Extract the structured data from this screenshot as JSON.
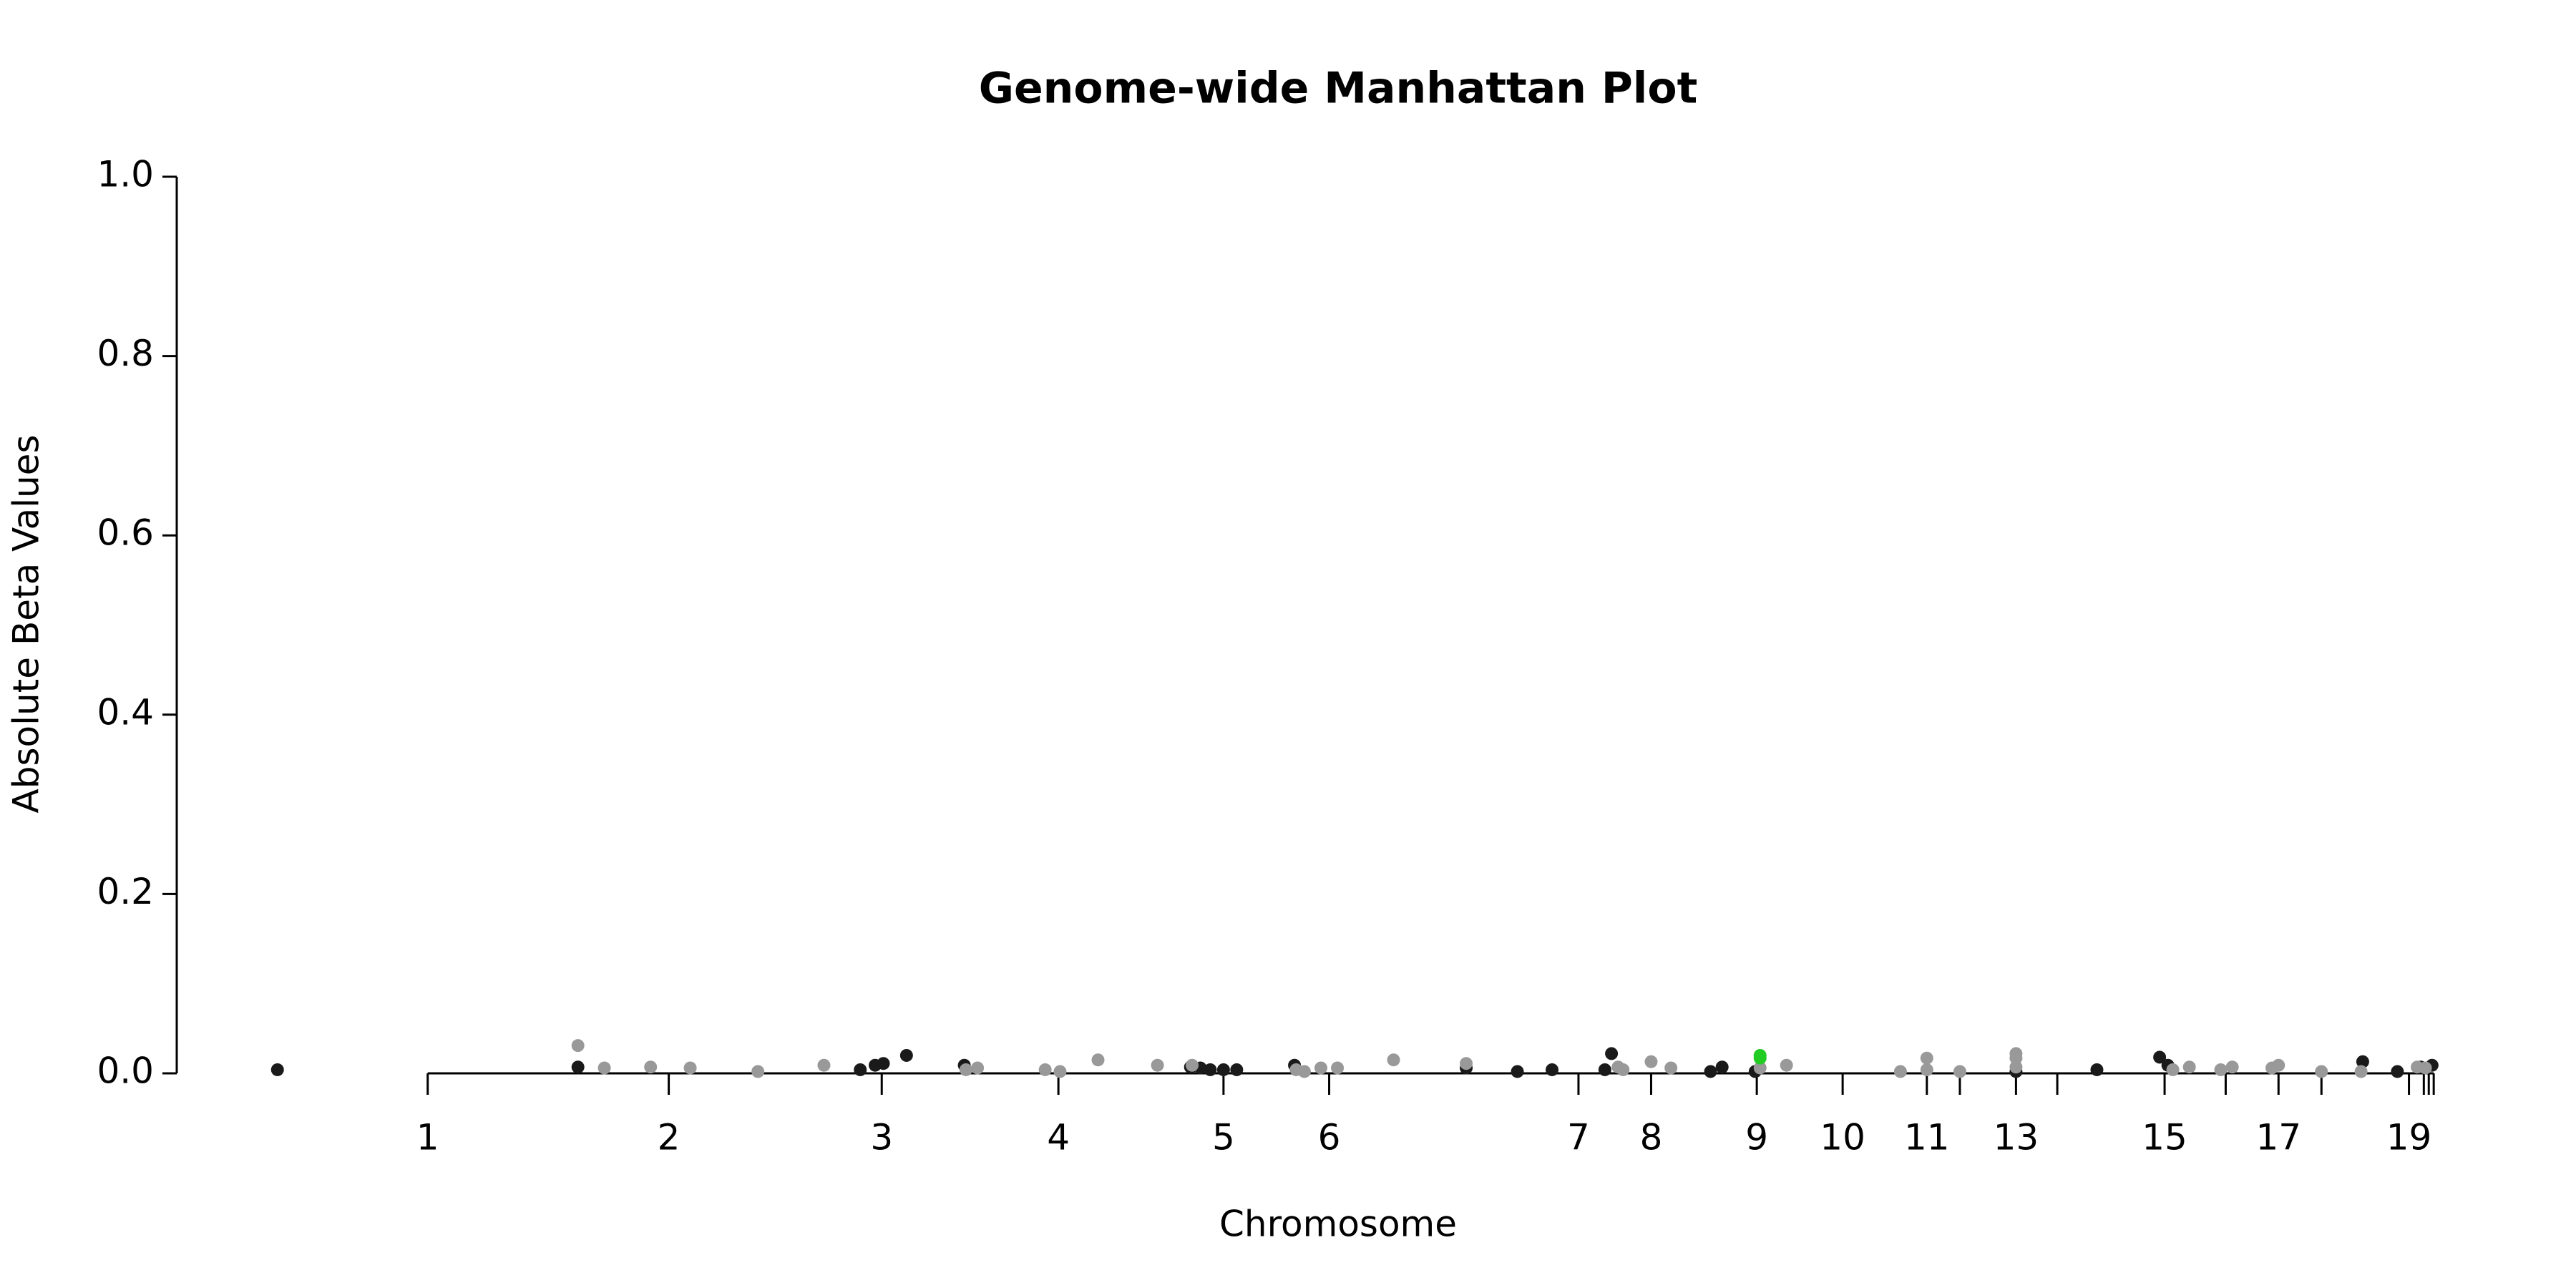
{
  "chart_data": {
    "type": "scatter",
    "title": "Genome-wide Manhattan Plot",
    "x_label": "Chromosome",
    "y_label": "Absolute Beta Values",
    "xlim": [
      107,
      1480
    ],
    "ylim": [
      0,
      1.0
    ],
    "xticks": [
      {
        "value": 259,
        "label": "1"
      },
      {
        "value": 405,
        "label": "2"
      },
      {
        "value": 534,
        "label": "3"
      },
      {
        "value": 641,
        "label": "4"
      },
      {
        "value": 741,
        "label": "5"
      },
      {
        "value": 805,
        "label": "6"
      },
      {
        "value": 956,
        "label": "7"
      },
      {
        "value": 1000,
        "label": "8"
      },
      {
        "value": 1064,
        "label": "9"
      },
      {
        "value": 1116,
        "label": "10"
      },
      {
        "value": 1167,
        "label": "11"
      },
      {
        "value": 1187,
        "label": null
      },
      {
        "value": 1221,
        "label": "13"
      },
      {
        "value": 1246,
        "label": null
      },
      {
        "value": 1311,
        "label": "15"
      },
      {
        "value": 1348,
        "label": null
      },
      {
        "value": 1380,
        "label": "17"
      },
      {
        "value": 1406,
        "label": null
      },
      {
        "value": 1459,
        "label": "19"
      },
      {
        "value": 1468,
        "label": null
      },
      {
        "value": 1471,
        "label": null
      },
      {
        "value": 1474,
        "label": null
      }
    ],
    "yticks": [
      {
        "value": 0,
        "label": "0.0"
      },
      {
        "value": 0.2,
        "label": "0.2"
      },
      {
        "value": 0.4,
        "label": "0.4"
      },
      {
        "value": 0.6,
        "label": "0.6"
      },
      {
        "value": 0.8,
        "label": "0.8"
      },
      {
        "value": 1.0,
        "label": "1.0"
      }
    ],
    "series": [
      {
        "color": "#1a1a1a",
        "x": [
          168,
          350,
          521,
          530,
          535,
          549,
          584,
          721,
          727,
          733,
          741,
          749,
          784,
          888,
          919,
          940,
          972,
          976,
          1036,
          1043,
          1063,
          1221,
          1270,
          1308,
          1313,
          1431,
          1452,
          1466,
          1473
        ],
        "values": [
          0.004,
          0.007,
          0.004,
          0.009,
          0.011,
          0.02,
          0.009,
          0.007,
          0.006,
          0.004,
          0.004,
          0.004,
          0.009,
          0.006,
          0.002,
          0.004,
          0.004,
          0.022,
          0.002,
          0.007,
          0.002,
          0.002,
          0.004,
          0.018,
          0.009,
          0.013,
          0.002,
          0.007,
          0.009
        ]
      },
      {
        "color": "#999999",
        "x": [
          350,
          366,
          394,
          418,
          459,
          499,
          585,
          592,
          633,
          642,
          665,
          701,
          722,
          785,
          790,
          800,
          810,
          844,
          888,
          980,
          983,
          1000,
          1012,
          1066,
          1082,
          1151,
          1167,
          1167,
          1187,
          1221,
          1221,
          1221,
          1316,
          1326,
          1345,
          1352,
          1376,
          1380,
          1406,
          1430,
          1464,
          1469
        ],
        "values": [
          0.031,
          0.006,
          0.007,
          0.006,
          0.002,
          0.009,
          0.004,
          0.006,
          0.004,
          0.002,
          0.015,
          0.009,
          0.009,
          0.004,
          0.002,
          0.006,
          0.006,
          0.015,
          0.011,
          0.007,
          0.004,
          0.013,
          0.006,
          0.006,
          0.009,
          0.002,
          0.017,
          0.004,
          0.002,
          0.022,
          0.017,
          0.007,
          0.004,
          0.007,
          0.004,
          0.007,
          0.006,
          0.009,
          0.002,
          0.002,
          0.007,
          0.006
        ]
      },
      {
        "color": "#22cc22",
        "x": [
          1066,
          1066
        ],
        "values": [
          0.02,
          0.017
        ]
      }
    ]
  }
}
